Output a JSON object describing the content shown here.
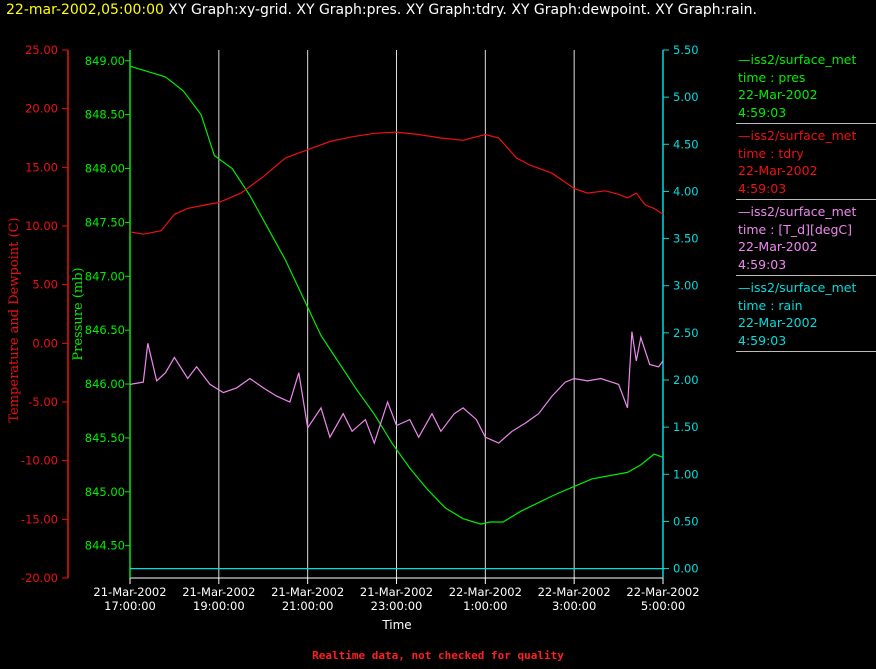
{
  "header": {
    "datetime": "22-mar-2002,05:00:00",
    "graphs": "XY Graph:xy-grid.  XY Graph:pres.  XY Graph:tdry.  XY Graph:dewpoint.  XY Graph:rain."
  },
  "footnote": "Realtime data, not checked for quality",
  "colors": {
    "pres": "#00ee00",
    "tdry": "#ee1111",
    "dewpoint": "#ee88ee",
    "rain": "#00dddd",
    "grid": "#dddddd",
    "background": "#000000"
  },
  "legend": [
    {
      "source": "—iss2/surface_met",
      "var": "time : pres",
      "date": "22-Mar-2002",
      "time": "4:59:03",
      "color": "#00ee00"
    },
    {
      "source": "—iss2/surface_met",
      "var": "time : tdry",
      "date": "22-Mar-2002",
      "time": "4:59:03",
      "color": "#ee1111"
    },
    {
      "source": "—iss2/surface_met",
      "var": "time : [T_d][degC]",
      "date": "22-Mar-2002",
      "time": "4:59:03",
      "color": "#ee88ee"
    },
    {
      "source": "—iss2/surface_met",
      "var": "time : rain",
      "date": "22-Mar-2002",
      "time": "4:59:03",
      "color": "#00dddd"
    }
  ],
  "chart_data": {
    "type": "line",
    "xlabel": "Time",
    "x_ticks": [
      {
        "line1": "21-Mar-2002",
        "line2": "17:00:00"
      },
      {
        "line1": "21-Mar-2002",
        "line2": "19:00:00"
      },
      {
        "line1": "21-Mar-2002",
        "line2": "21:00:00"
      },
      {
        "line1": "21-Mar-2002",
        "line2": "23:00:00"
      },
      {
        "line1": "22-Mar-2002",
        "line2": "1:00:00"
      },
      {
        "line1": "22-Mar-2002",
        "line2": "3:00:00"
      },
      {
        "line1": "22-Mar-2002",
        "line2": "5:00:00"
      }
    ],
    "x_tick_hours": [
      17,
      19,
      21,
      23,
      25,
      27,
      29
    ],
    "xlim": [
      17,
      29
    ],
    "grid": "vertical",
    "axes": {
      "temperature": {
        "label": "Temperature and Dewpoint (C)",
        "ylim": [
          -20,
          25
        ],
        "ticks": [
          "25.00",
          "20.00",
          "15.00",
          "10.00",
          "5.00",
          "0.00",
          "-5.00",
          "-10.00",
          "-15.00",
          "-20.00"
        ]
      },
      "pressure": {
        "label": "Pressure (mb)",
        "ylim": [
          844.2,
          849.1
        ],
        "ticks": [
          "849.00",
          "848.50",
          "848.00",
          "847.50",
          "847.00",
          "846.50",
          "846.00",
          "845.50",
          "845.00",
          "844.50"
        ]
      },
      "rain": {
        "label": "",
        "ylim": [
          -0.1,
          5.5
        ],
        "ticks": [
          "5.50",
          "5.00",
          "4.50",
          "4.00",
          "3.50",
          "3.00",
          "2.50",
          "2.00",
          "1.50",
          "1.00",
          "0.50",
          "0.00"
        ]
      }
    },
    "series": [
      {
        "name": "pres",
        "axis": "pressure",
        "x": [
          17.0,
          17.4,
          17.8,
          18.2,
          18.6,
          18.9,
          19.3,
          19.7,
          20.1,
          20.5,
          20.9,
          21.3,
          21.7,
          22.1,
          22.5,
          22.9,
          23.3,
          23.7,
          24.1,
          24.5,
          24.9,
          25.1,
          25.4,
          25.8,
          26.2,
          26.6,
          27.0,
          27.4,
          27.8,
          28.2,
          28.5,
          28.8,
          29.0
        ],
        "values": [
          848.95,
          848.9,
          848.85,
          848.72,
          848.5,
          848.12,
          848.0,
          847.75,
          847.45,
          847.15,
          846.8,
          846.45,
          846.2,
          845.95,
          845.72,
          845.45,
          845.22,
          845.02,
          844.85,
          844.75,
          844.7,
          844.72,
          844.72,
          844.82,
          844.9,
          844.98,
          845.05,
          845.12,
          845.15,
          845.18,
          845.25,
          845.35,
          845.32
        ]
      },
      {
        "name": "tdry",
        "axis": "temperature",
        "x": [
          17.0,
          17.3,
          17.7,
          18.0,
          18.3,
          18.7,
          19.0,
          19.5,
          20.0,
          20.5,
          21.0,
          21.5,
          22.0,
          22.5,
          23.0,
          23.5,
          24.0,
          24.5,
          25.0,
          25.3,
          25.7,
          26.0,
          26.5,
          27.0,
          27.3,
          27.7,
          28.0,
          28.2,
          28.4,
          28.6,
          28.8,
          29.0
        ],
        "values": [
          9.5,
          9.3,
          9.6,
          11.0,
          11.5,
          11.8,
          12.0,
          12.8,
          14.2,
          15.8,
          16.5,
          17.2,
          17.6,
          17.9,
          18.0,
          17.8,
          17.5,
          17.3,
          17.8,
          17.5,
          15.8,
          15.2,
          14.5,
          13.2,
          12.8,
          13.0,
          12.7,
          12.4,
          12.8,
          11.8,
          11.5,
          11.0
        ]
      },
      {
        "name": "[T_d][degC]",
        "axis": "temperature",
        "x": [
          17.0,
          17.3,
          17.4,
          17.6,
          17.8,
          18.0,
          18.3,
          18.5,
          18.8,
          19.1,
          19.4,
          19.7,
          20.0,
          20.3,
          20.6,
          20.8,
          21.0,
          21.3,
          21.5,
          21.8,
          22.0,
          22.3,
          22.5,
          22.8,
          23.0,
          23.3,
          23.5,
          23.8,
          24.0,
          24.3,
          24.5,
          24.8,
          25.0,
          25.3,
          25.6,
          25.9,
          26.2,
          26.5,
          26.8,
          27.0,
          27.3,
          27.6,
          28.0,
          28.2,
          28.3,
          28.4,
          28.5,
          28.7,
          28.9,
          29.0
        ],
        "values": [
          -3.5,
          -3.3,
          0.0,
          -3.2,
          -2.5,
          -1.2,
          -3.0,
          -2.0,
          -3.5,
          -4.2,
          -3.8,
          -3.0,
          -3.8,
          -4.5,
          -5.0,
          -2.5,
          -7.2,
          -5.5,
          -8.0,
          -6.0,
          -7.5,
          -6.5,
          -8.5,
          -5.0,
          -7.0,
          -6.5,
          -8.0,
          -6.0,
          -7.5,
          -6.0,
          -5.5,
          -6.5,
          -8.0,
          -8.5,
          -7.5,
          -6.8,
          -6.0,
          -4.5,
          -3.3,
          -3.0,
          -3.2,
          -3.0,
          -3.5,
          -5.5,
          1.0,
          -1.5,
          0.5,
          -1.8,
          -2.0,
          -1.5
        ]
      },
      {
        "name": "rain",
        "axis": "rain",
        "x": [
          17.0,
          29.0
        ],
        "values": [
          0.0,
          0.0
        ]
      }
    ]
  }
}
